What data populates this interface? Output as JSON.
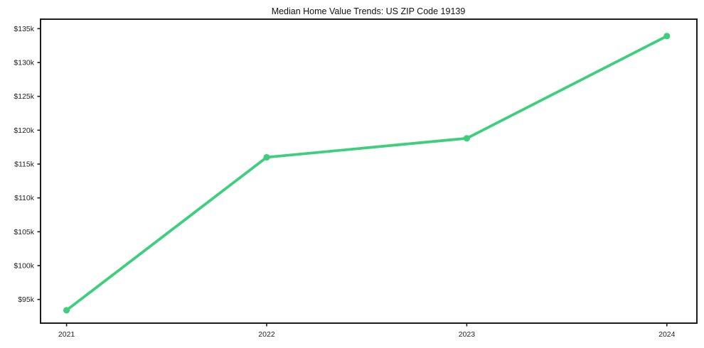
{
  "chart_data": {
    "type": "line",
    "title": "Median Home Value Trends: US ZIP Code 19139",
    "x": [
      2021,
      2022,
      2023,
      2024
    ],
    "x_tick_labels": [
      "2021",
      "2022",
      "2023",
      "2024"
    ],
    "values": [
      93400,
      116000,
      118800,
      133900
    ],
    "y_ticks": [
      95000,
      100000,
      105000,
      110000,
      115000,
      120000,
      125000,
      130000,
      135000
    ],
    "y_tick_labels": [
      "$95k",
      "$100k",
      "$105k",
      "$110k",
      "$115k",
      "$120k",
      "$125k",
      "$130k",
      "$135k"
    ],
    "xlim": [
      2020.87,
      2024.15
    ],
    "ylim": [
      91500,
      136400
    ],
    "xlabel": "",
    "ylabel": "",
    "grid": false,
    "legend": "none",
    "line_color": "#3ecf7d",
    "marker": "circle",
    "marker_radius": 4.6,
    "line_width": 3.8,
    "axis_color": "#1c1c1c",
    "tick_color": "#1c1c1c",
    "tick_label_color": "#222222",
    "title_color": "#111111",
    "background_color": "#ffffff"
  }
}
